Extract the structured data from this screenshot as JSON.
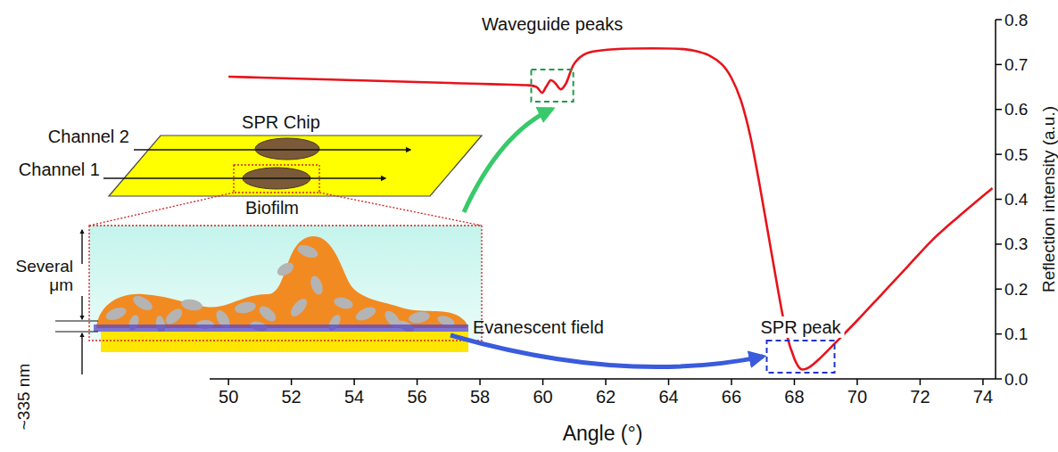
{
  "chart_data": {
    "type": "line",
    "x_label": "Angle (°)",
    "y_label": "Reflection intensity (a.u.)",
    "x": [
      50,
      51,
      52,
      53,
      54,
      55,
      56,
      57,
      58,
      59,
      59.5,
      59.8,
      59.97,
      60.1,
      60.25,
      60.4,
      60.57,
      60.75,
      60.98,
      61.3,
      61.7,
      62.5,
      63.5,
      64.3,
      64.8,
      65.3,
      65.7,
      66.0,
      66.3,
      66.6,
      66.9,
      67.2,
      67.5,
      67.75,
      68.0,
      68.2,
      68.45,
      68.8,
      69.3,
      70.0,
      70.8,
      71.6,
      72.4,
      73.2,
      74.3
    ],
    "values": [
      0.673,
      0.671,
      0.669,
      0.667,
      0.665,
      0.663,
      0.661,
      0.659,
      0.657,
      0.655,
      0.654,
      0.65,
      0.637,
      0.65,
      0.665,
      0.658,
      0.645,
      0.66,
      0.7,
      0.722,
      0.73,
      0.735,
      0.736,
      0.735,
      0.731,
      0.72,
      0.7,
      0.67,
      0.62,
      0.54,
      0.43,
      0.31,
      0.19,
      0.1,
      0.045,
      0.022,
      0.025,
      0.045,
      0.08,
      0.13,
      0.19,
      0.25,
      0.31,
      0.36,
      0.425
    ],
    "color": "#e8131b",
    "xlim": [
      49.4,
      74.4
    ],
    "ylim": [
      0,
      0.8
    ],
    "xticks": [
      50,
      52,
      54,
      56,
      58,
      60,
      62,
      64,
      66,
      68,
      70,
      72,
      74
    ],
    "yticks": [
      {
        "value": 0,
        "label": "0.0"
      },
      0.1,
      0.2,
      0.3,
      0.4,
      0.5,
      0.6,
      0.7,
      0.8
    ],
    "grid": false,
    "annotations": [
      "Waveguide peaks",
      "SPR peak"
    ]
  },
  "diagram": {
    "chip_label": "SPR Chip",
    "channels": [
      "Channel 2",
      "Channel 1"
    ],
    "biofilm_label": "Biofilm",
    "thickness_label": "Several μm",
    "field_label": "Evanescent field",
    "depth_label": "~335 nm"
  }
}
